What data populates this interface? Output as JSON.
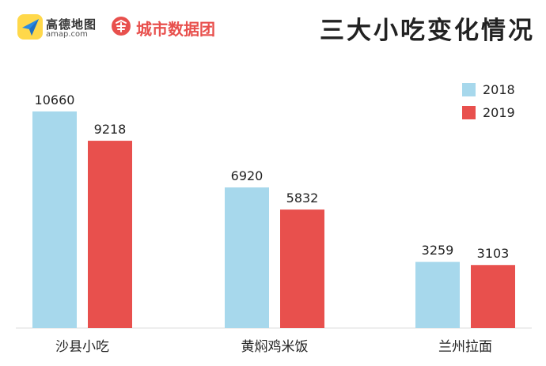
{
  "header": {
    "amap_name": "高德地图",
    "amap_domain": "amap.com",
    "city_name": "城市数据团",
    "amap_logo_icon": "paper-plane-icon",
    "city_logo_icon": "city-data-logo-icon"
  },
  "colors": {
    "series_2018": "#a7d8ec",
    "series_2019": "#e8504d",
    "brand_red": "#e8504d"
  },
  "chart_data": {
    "type": "bar",
    "title": "三大小吃变化情况",
    "categories": [
      "沙县小吃",
      "黄焖鸡米饭",
      "兰州拉面"
    ],
    "series": [
      {
        "name": "2018",
        "values": [
          10660,
          6920,
          3259
        ]
      },
      {
        "name": "2019",
        "values": [
          9218,
          5832,
          3103
        ]
      }
    ],
    "legend_position": "top-right",
    "grid": false,
    "xlabel": "",
    "ylabel": "",
    "ylim": [
      0,
      10660
    ]
  }
}
